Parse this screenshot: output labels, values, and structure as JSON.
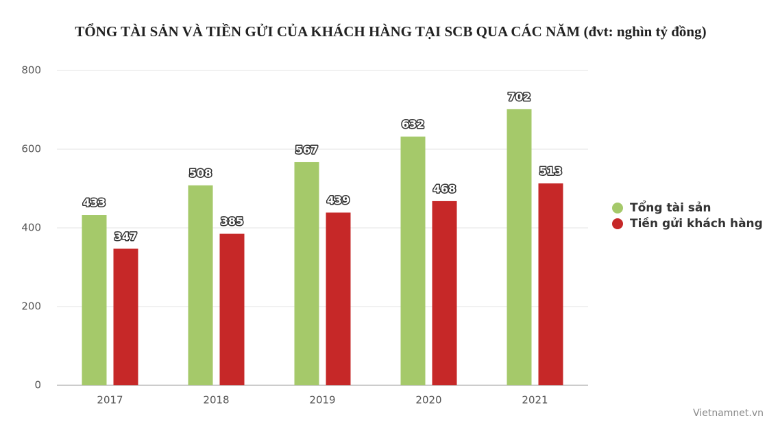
{
  "chart_data": {
    "type": "bar",
    "title": "TỔNG TÀI SẢN VÀ TIỀN GỬI CỦA KHÁCH HÀNG TẠI SCB QUA CÁC NĂM (đvt: nghìn tỷ đồng)",
    "categories": [
      "2017",
      "2018",
      "2019",
      "2020",
      "2021"
    ],
    "series": [
      {
        "name": "Tổng tài sản",
        "color": "#a5c96a",
        "values": [
          433,
          508,
          567,
          632,
          702
        ]
      },
      {
        "name": "Tiền gửi khách hàng",
        "color": "#c62828",
        "values": [
          347,
          385,
          439,
          468,
          513
        ]
      }
    ],
    "ylim": [
      0,
      800
    ],
    "yticks": [
      0,
      200,
      400,
      600,
      800
    ],
    "grid": true,
    "legend": "right",
    "source": "Vietnamnet.vn"
  }
}
